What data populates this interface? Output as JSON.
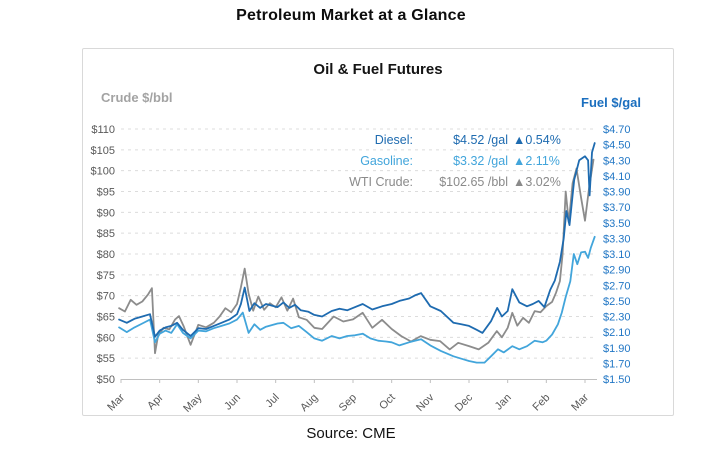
{
  "page": {
    "title": "Petroleum Market at a Glance",
    "source": "Source: CME"
  },
  "chart_data": {
    "type": "line",
    "title": "Oil & Fuel Futures",
    "left_axis": {
      "label": "Crude $/bbl",
      "tick_labels": [
        "$110",
        "$105",
        "$100",
        "$95",
        "$90",
        "$85",
        "$80",
        "$75",
        "$70",
        "$65",
        "$60",
        "$55",
        "$50"
      ],
      "tick_values": [
        110,
        105,
        100,
        95,
        90,
        85,
        80,
        75,
        70,
        65,
        60,
        55,
        50
      ],
      "range": [
        50,
        110
      ]
    },
    "right_axis": {
      "label": "Fuel $/gal",
      "tick_labels": [
        "$4.70",
        "$4.50",
        "$4.30",
        "$4.10",
        "$3.90",
        "$3.70",
        "$3.50",
        "$3.30",
        "$3.10",
        "$2.90",
        "$2.70",
        "$2.50",
        "$2.30",
        "$2.10",
        "$1.90",
        "$1.70",
        "$1.50"
      ],
      "tick_values": [
        4.7,
        4.5,
        4.3,
        4.1,
        3.9,
        3.7,
        3.5,
        3.3,
        3.1,
        2.9,
        2.7,
        2.5,
        2.3,
        2.1,
        1.9,
        1.7,
        1.5
      ],
      "range": [
        1.5,
        4.7
      ]
    },
    "x_axis": {
      "tick_labels": [
        "Mar",
        "Apr",
        "May",
        "Jun",
        "Jul",
        "Aug",
        "Sep",
        "Oct",
        "Nov",
        "Dec",
        "Jan",
        "Feb",
        "Mar"
      ]
    },
    "grid": true,
    "legend_position": "top-right-inside",
    "legend": {
      "rows": [
        {
          "id": "diesel",
          "label": "Diesel:",
          "value": "$4.52 /gal",
          "change": "▲0.54%",
          "color": "#1e6bb0"
        },
        {
          "id": "gasoline",
          "label": "Gasoline:",
          "value": "$3.32 /gal",
          "change": "▲2.11%",
          "color": "#42a5db"
        },
        {
          "id": "wti",
          "label": "WTI Crude:",
          "value": "$102.65 /bbl",
          "change": "▲3.02%",
          "color": "#8a8a8a"
        }
      ]
    },
    "series": [
      {
        "name": "WTI Crude",
        "axis": "crude",
        "color": "#8c8c8c",
        "points": [
          [
            -0.05,
            67.0
          ],
          [
            0.1,
            66.2
          ],
          [
            0.25,
            69.0
          ],
          [
            0.4,
            67.8
          ],
          [
            0.55,
            68.6
          ],
          [
            0.7,
            70.3
          ],
          [
            0.8,
            71.8
          ],
          [
            0.88,
            56.2
          ],
          [
            0.96,
            60.5
          ],
          [
            1.1,
            62.3
          ],
          [
            1.25,
            61.9
          ],
          [
            1.4,
            64.3
          ],
          [
            1.5,
            65.1
          ],
          [
            1.62,
            62.7
          ],
          [
            1.8,
            58.2
          ],
          [
            2.0,
            63.0
          ],
          [
            2.2,
            62.4
          ],
          [
            2.4,
            63.5
          ],
          [
            2.55,
            65.0
          ],
          [
            2.7,
            67.0
          ],
          [
            2.85,
            66.0
          ],
          [
            3.0,
            68.0
          ],
          [
            3.1,
            72.0
          ],
          [
            3.2,
            76.5
          ],
          [
            3.3,
            70.5
          ],
          [
            3.42,
            66.4
          ],
          [
            3.55,
            69.8
          ],
          [
            3.7,
            66.6
          ],
          [
            3.85,
            68.2
          ],
          [
            4.0,
            67.2
          ],
          [
            4.15,
            69.6
          ],
          [
            4.3,
            66.4
          ],
          [
            4.45,
            69.3
          ],
          [
            4.6,
            64.8
          ],
          [
            4.8,
            64.2
          ],
          [
            5.0,
            62.3
          ],
          [
            5.2,
            62.0
          ],
          [
            5.5,
            65.0
          ],
          [
            5.75,
            63.8
          ],
          [
            6.0,
            64.3
          ],
          [
            6.25,
            65.9
          ],
          [
            6.5,
            62.3
          ],
          [
            6.75,
            64.2
          ],
          [
            7.0,
            62.0
          ],
          [
            7.25,
            60.3
          ],
          [
            7.5,
            59.0
          ],
          [
            7.75,
            60.3
          ],
          [
            8.0,
            59.4
          ],
          [
            8.25,
            59.1
          ],
          [
            8.5,
            57.1
          ],
          [
            8.72,
            58.7
          ],
          [
            9.0,
            57.9
          ],
          [
            9.25,
            57.1
          ],
          [
            9.5,
            58.7
          ],
          [
            9.72,
            61.5
          ],
          [
            9.85,
            60.0
          ],
          [
            10.0,
            62.3
          ],
          [
            10.12,
            65.9
          ],
          [
            10.25,
            62.8
          ],
          [
            10.4,
            64.7
          ],
          [
            10.55,
            63.5
          ],
          [
            10.7,
            66.3
          ],
          [
            10.85,
            66.0
          ],
          [
            11.0,
            67.5
          ],
          [
            11.15,
            68.5
          ],
          [
            11.25,
            70.7
          ],
          [
            11.35,
            73.5
          ],
          [
            11.42,
            80.0
          ],
          [
            11.5,
            95.0
          ],
          [
            11.58,
            87.6
          ],
          [
            11.68,
            97.0
          ],
          [
            11.78,
            100.5
          ],
          [
            11.9,
            93.5
          ],
          [
            12.0,
            88.0
          ],
          [
            12.1,
            95.5
          ],
          [
            12.22,
            102.65
          ]
        ]
      },
      {
        "name": "Gasoline",
        "axis": "fuel",
        "color": "#42a5db",
        "points": [
          [
            -0.05,
            2.16
          ],
          [
            0.15,
            2.1
          ],
          [
            0.35,
            2.16
          ],
          [
            0.55,
            2.21
          ],
          [
            0.75,
            2.26
          ],
          [
            0.88,
            1.97
          ],
          [
            1.0,
            2.08
          ],
          [
            1.15,
            2.12
          ],
          [
            1.3,
            2.09
          ],
          [
            1.45,
            2.2
          ],
          [
            1.6,
            2.09
          ],
          [
            1.8,
            2.02
          ],
          [
            2.0,
            2.12
          ],
          [
            2.2,
            2.11
          ],
          [
            2.4,
            2.15
          ],
          [
            2.6,
            2.18
          ],
          [
            2.8,
            2.21
          ],
          [
            3.0,
            2.26
          ],
          [
            3.15,
            2.35
          ],
          [
            3.3,
            2.09
          ],
          [
            3.45,
            2.2
          ],
          [
            3.6,
            2.13
          ],
          [
            3.75,
            2.17
          ],
          [
            3.9,
            2.19
          ],
          [
            4.05,
            2.21
          ],
          [
            4.2,
            2.22
          ],
          [
            4.4,
            2.15
          ],
          [
            4.6,
            2.18
          ],
          [
            4.8,
            2.1
          ],
          [
            5.0,
            2.02
          ],
          [
            5.2,
            1.99
          ],
          [
            5.45,
            2.05
          ],
          [
            5.65,
            2.02
          ],
          [
            5.85,
            2.05
          ],
          [
            6.05,
            2.06
          ],
          [
            6.25,
            2.08
          ],
          [
            6.45,
            2.02
          ],
          [
            6.65,
            1.99
          ],
          [
            6.85,
            1.98
          ],
          [
            7.0,
            1.97
          ],
          [
            7.2,
            1.93
          ],
          [
            7.45,
            1.97
          ],
          [
            7.6,
            1.99
          ],
          [
            7.76,
            2.01
          ],
          [
            8.0,
            1.93
          ],
          [
            8.27,
            1.86
          ],
          [
            8.6,
            1.79
          ],
          [
            8.8,
            1.76
          ],
          [
            9.0,
            1.73
          ],
          [
            9.2,
            1.71
          ],
          [
            9.4,
            1.71
          ],
          [
            9.57,
            1.79
          ],
          [
            9.75,
            1.88
          ],
          [
            9.9,
            1.84
          ],
          [
            10.12,
            1.92
          ],
          [
            10.3,
            1.88
          ],
          [
            10.5,
            1.92
          ],
          [
            10.7,
            1.99
          ],
          [
            10.9,
            1.97
          ],
          [
            11.0,
            1.99
          ],
          [
            11.15,
            2.07
          ],
          [
            11.3,
            2.2
          ],
          [
            11.4,
            2.35
          ],
          [
            11.5,
            2.55
          ],
          [
            11.62,
            2.75
          ],
          [
            11.71,
            3.1
          ],
          [
            11.8,
            2.97
          ],
          [
            11.9,
            3.12
          ],
          [
            12.0,
            3.13
          ],
          [
            12.08,
            3.05
          ],
          [
            12.15,
            3.18
          ],
          [
            12.25,
            3.32
          ]
        ]
      },
      {
        "name": "Diesel",
        "axis": "fuel",
        "color": "#1e6bb0",
        "points": [
          [
            -0.05,
            2.26
          ],
          [
            0.15,
            2.22
          ],
          [
            0.35,
            2.27
          ],
          [
            0.55,
            2.3
          ],
          [
            0.75,
            2.33
          ],
          [
            0.88,
            2.04
          ],
          [
            1.0,
            2.12
          ],
          [
            1.15,
            2.16
          ],
          [
            1.3,
            2.18
          ],
          [
            1.45,
            2.22
          ],
          [
            1.6,
            2.13
          ],
          [
            1.8,
            2.05
          ],
          [
            2.0,
            2.15
          ],
          [
            2.2,
            2.14
          ],
          [
            2.4,
            2.18
          ],
          [
            2.6,
            2.22
          ],
          [
            2.8,
            2.26
          ],
          [
            3.0,
            2.33
          ],
          [
            3.1,
            2.46
          ],
          [
            3.2,
            2.67
          ],
          [
            3.32,
            2.37
          ],
          [
            3.45,
            2.47
          ],
          [
            3.6,
            2.41
          ],
          [
            3.75,
            2.46
          ],
          [
            3.9,
            2.44
          ],
          [
            4.05,
            2.42
          ],
          [
            4.2,
            2.48
          ],
          [
            4.35,
            2.41
          ],
          [
            4.5,
            2.45
          ],
          [
            4.65,
            2.38
          ],
          [
            4.85,
            2.36
          ],
          [
            5.0,
            2.32
          ],
          [
            5.2,
            2.3
          ],
          [
            5.45,
            2.37
          ],
          [
            5.65,
            2.4
          ],
          [
            5.85,
            2.38
          ],
          [
            6.0,
            2.41
          ],
          [
            6.25,
            2.46
          ],
          [
            6.5,
            2.39
          ],
          [
            6.75,
            2.43
          ],
          [
            7.0,
            2.46
          ],
          [
            7.2,
            2.5
          ],
          [
            7.45,
            2.53
          ],
          [
            7.6,
            2.57
          ],
          [
            7.76,
            2.6
          ],
          [
            8.0,
            2.43
          ],
          [
            8.27,
            2.37
          ],
          [
            8.6,
            2.22
          ],
          [
            8.8,
            2.2
          ],
          [
            9.0,
            2.18
          ],
          [
            9.2,
            2.13
          ],
          [
            9.35,
            2.09
          ],
          [
            9.57,
            2.24
          ],
          [
            9.73,
            2.41
          ],
          [
            9.85,
            2.3
          ],
          [
            10.0,
            2.37
          ],
          [
            10.12,
            2.65
          ],
          [
            10.3,
            2.48
          ],
          [
            10.5,
            2.43
          ],
          [
            10.65,
            2.46
          ],
          [
            10.8,
            2.5
          ],
          [
            10.95,
            2.42
          ],
          [
            11.1,
            2.64
          ],
          [
            11.22,
            2.76
          ],
          [
            11.35,
            3.0
          ],
          [
            11.45,
            3.3
          ],
          [
            11.52,
            3.65
          ],
          [
            11.6,
            3.47
          ],
          [
            11.72,
            4.05
          ],
          [
            11.85,
            4.3
          ],
          [
            12.0,
            4.35
          ],
          [
            12.08,
            4.3
          ],
          [
            12.12,
            3.85
          ],
          [
            12.18,
            4.4
          ],
          [
            12.25,
            4.52
          ]
        ]
      }
    ],
    "style": {
      "grid_color": "#dcdcdc",
      "axis_line_color": "#c0c0c0",
      "crude_tick_color": "#595959",
      "fuel_tick_color": "#2277c5",
      "month_label_color": "#595959"
    }
  }
}
